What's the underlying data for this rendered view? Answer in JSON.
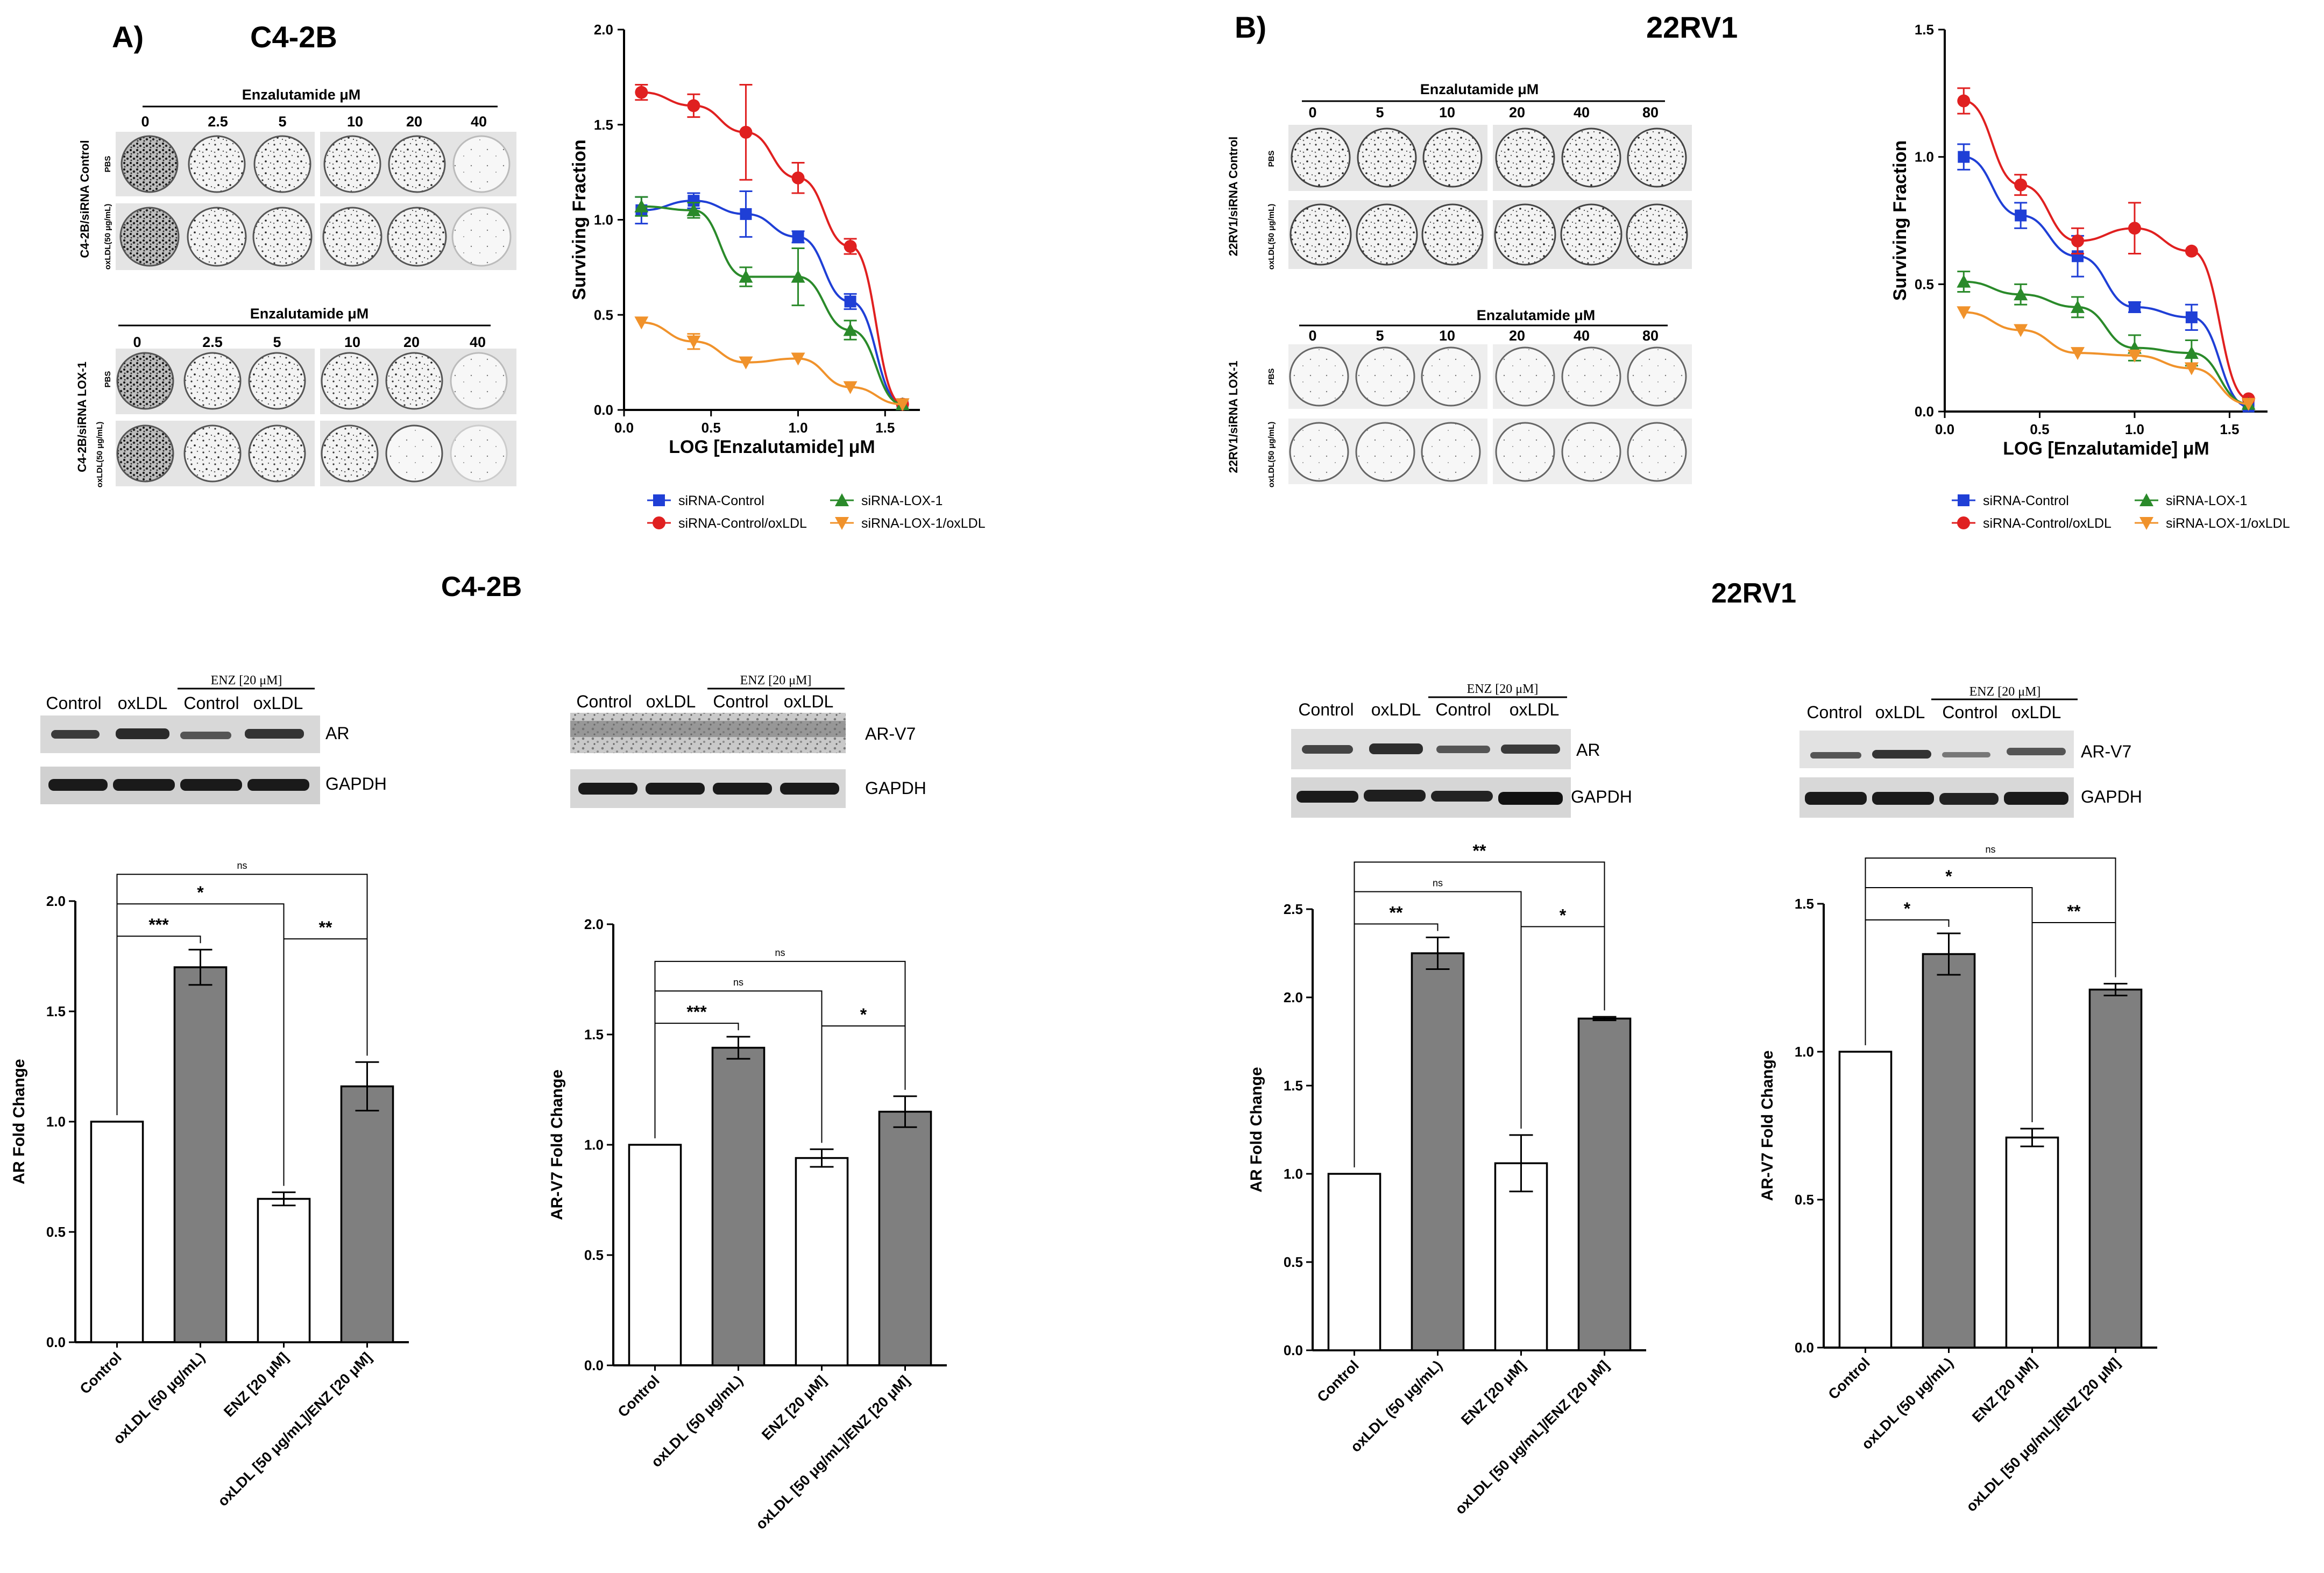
{
  "panelA": {
    "letter": "A)",
    "cell_line": "C4-2B",
    "assay_top": {
      "drug_header": "Enzalutamide μM",
      "doses": [
        "0",
        "2.5",
        "5",
        "10",
        "20",
        "40"
      ],
      "group_label": "C4-2B/siRNA Control",
      "row_labels": [
        "PBS",
        "oxLDL(50 μg/mL)"
      ]
    },
    "assay_bottom": {
      "drug_header": "Enzalutamide μM",
      "doses": [
        "0",
        "2.5",
        "5",
        "10",
        "20",
        "40"
      ],
      "group_label": "C4-2B/siRNA LOX-1",
      "row_labels": [
        "PBS",
        "oxLDL(50 μg/mL)"
      ]
    }
  },
  "panelB": {
    "letter": "B)",
    "cell_line": "22RV1",
    "assay_top": {
      "drug_header": "Enzalutamide μM",
      "doses": [
        "0",
        "5",
        "10",
        "20",
        "40",
        "80"
      ],
      "group_label": "22RV1/siRNA Control",
      "row_labels": [
        "PBS",
        "oxLDL(50 μg/mL)"
      ]
    },
    "assay_bottom": {
      "drug_header": "Enzalutamide μM",
      "doses": [
        "0",
        "5",
        "10",
        "20",
        "40",
        "80"
      ],
      "group_label": "22RV1/siRNA LOX-1",
      "row_labels": [
        "PBS",
        "oxLDL(50 μg/mL)"
      ]
    }
  },
  "westerns": {
    "c42b_title": "C4-2B",
    "rv1_title": "22RV1",
    "lane_labels": [
      "Control",
      "oxLDL",
      "Control",
      "oxLDL"
    ],
    "enz_label": "ENZ [20 μM]",
    "blots": [
      {
        "protein": "AR",
        "loading": "GAPDH"
      },
      {
        "protein": "AR-V7",
        "loading": "GAPDH"
      },
      {
        "protein": "AR",
        "loading": "GAPDH"
      },
      {
        "protein": "AR-V7",
        "loading": "GAPDH"
      }
    ]
  },
  "colors": {
    "siRNA-Control": "#1f3fd6",
    "siRNA-Control/oxLDL": "#e02020",
    "siRNA-LOX-1": "#2a8a2a",
    "siRNA-LOX-1/oxLDL": "#f0922b",
    "bar_grey": "#7f7f7f"
  },
  "chart_data": [
    {
      "type": "line",
      "title": "",
      "xlabel": "LOG [Enzalutamide] μM",
      "ylabel": "Surviving Fraction",
      "xlim": [
        0,
        1.7
      ],
      "ylim": [
        0,
        2.0
      ],
      "xticks": [
        "0.0",
        "0.5",
        "1.0",
        "1.5"
      ],
      "yticks": [
        "0.0",
        "0.5",
        "1.0",
        "1.5",
        "2.0"
      ],
      "x": [
        0.1,
        0.4,
        0.7,
        1.0,
        1.3,
        1.6
      ],
      "series": [
        {
          "name": "siRNA-Control",
          "marker": "square",
          "values": [
            1.05,
            1.1,
            1.03,
            0.91,
            0.57,
            0.03
          ],
          "errors": [
            0.07,
            0.04,
            0.12,
            0.03,
            0.04,
            0.01
          ]
        },
        {
          "name": "siRNA-Control/oxLDL",
          "marker": "circle",
          "values": [
            1.67,
            1.6,
            1.46,
            1.22,
            0.86,
            0.03
          ],
          "errors": [
            0.04,
            0.06,
            0.25,
            0.08,
            0.04,
            0.01
          ]
        },
        {
          "name": "siRNA-LOX-1",
          "marker": "triangle-up",
          "values": [
            1.07,
            1.05,
            0.7,
            0.7,
            0.42,
            0.03
          ],
          "errors": [
            0.05,
            0.04,
            0.05,
            0.15,
            0.05,
            0.01
          ]
        },
        {
          "name": "siRNA-LOX-1/oxLDL",
          "marker": "triangle-down",
          "values": [
            0.46,
            0.36,
            0.25,
            0.27,
            0.12,
            0.03
          ],
          "errors": [
            0.01,
            0.04,
            0.01,
            0.01,
            0.01,
            0.01
          ]
        }
      ],
      "legend": [
        "siRNA-Control",
        "siRNA-LOX-1",
        "siRNA-Control/oxLDL",
        "siRNA-LOX-1/oxLDL"
      ]
    },
    {
      "type": "line",
      "title": "",
      "xlabel": "LOG [Enzalutamide] μM",
      "ylabel": "Surviving Fraction",
      "xlim": [
        0,
        1.7
      ],
      "ylim": [
        0,
        1.5
      ],
      "xticks": [
        "0.0",
        "0.5",
        "1.0",
        "1.5"
      ],
      "yticks": [
        "0.0",
        "0.5",
        "1.0",
        "1.5"
      ],
      "x": [
        0.1,
        0.4,
        0.7,
        1.0,
        1.3,
        1.6
      ],
      "series": [
        {
          "name": "siRNA-Control",
          "marker": "square",
          "values": [
            1.0,
            0.77,
            0.61,
            0.41,
            0.37,
            0.02
          ],
          "errors": [
            0.05,
            0.05,
            0.08,
            0.02,
            0.05,
            0.01
          ]
        },
        {
          "name": "siRNA-Control/oxLDL",
          "marker": "circle",
          "values": [
            1.22,
            0.89,
            0.67,
            0.72,
            0.63,
            0.05
          ],
          "errors": [
            0.05,
            0.04,
            0.05,
            0.1,
            0.01,
            0.01
          ]
        },
        {
          "name": "siRNA-LOX-1",
          "marker": "triangle-up",
          "values": [
            0.51,
            0.46,
            0.41,
            0.25,
            0.23,
            0.03
          ],
          "errors": [
            0.04,
            0.04,
            0.04,
            0.05,
            0.05,
            0.01
          ]
        },
        {
          "name": "siRNA-LOX-1/oxLDL",
          "marker": "triangle-down",
          "values": [
            0.39,
            0.32,
            0.23,
            0.22,
            0.17,
            0.03
          ],
          "errors": [
            0.01,
            0.01,
            0.01,
            0.01,
            0.01,
            0.01
          ]
        }
      ],
      "legend": [
        "siRNA-Control",
        "siRNA-LOX-1",
        "siRNA-Control/oxLDL",
        "siRNA-LOX-1/oxLDL"
      ]
    },
    {
      "type": "bar",
      "ylabel": "AR Fold Change",
      "ylim": [
        0,
        2.0
      ],
      "yticks": [
        "0.0",
        "0.5",
        "1.0",
        "1.5",
        "2.0"
      ],
      "categories": [
        "Control",
        "oxLDL (50 μg/mL)",
        "ENZ [20 μM]",
        "oxLDL [50 μg/mL]/ENZ [20 μM]"
      ],
      "values": [
        1.0,
        1.7,
        0.65,
        1.16
      ],
      "errors": [
        0,
        0.08,
        0.03,
        0.11
      ],
      "fills": [
        "white",
        "grey",
        "white",
        "grey"
      ],
      "significance": [
        {
          "from": 0,
          "to": 3,
          "label": "ns",
          "level": 3
        },
        {
          "from": 0,
          "to": 2,
          "label": "*",
          "level": 2
        },
        {
          "from": 0,
          "to": 1,
          "label": "***",
          "level": 1
        },
        {
          "from": 2,
          "to": 3,
          "label": "**",
          "level": 1
        }
      ]
    },
    {
      "type": "bar",
      "ylabel": "AR-V7 Fold Change",
      "ylim": [
        0,
        2.0
      ],
      "yticks": [
        "0.0",
        "0.5",
        "1.0",
        "1.5",
        "2.0"
      ],
      "categories": [
        "Control",
        "oxLDL (50 μg/mL)",
        "ENZ [20 μM]",
        "oxLDL [50 μg/mL]/ENZ [20 μM]"
      ],
      "values": [
        1.0,
        1.44,
        0.94,
        1.15
      ],
      "errors": [
        0,
        0.05,
        0.04,
        0.07
      ],
      "fills": [
        "white",
        "grey",
        "white",
        "grey"
      ],
      "significance": [
        {
          "from": 0,
          "to": 3,
          "label": "ns",
          "level": 3
        },
        {
          "from": 0,
          "to": 2,
          "label": "ns",
          "level": 2
        },
        {
          "from": 0,
          "to": 1,
          "label": "***",
          "level": 1
        },
        {
          "from": 2,
          "to": 3,
          "label": "*",
          "level": 1
        }
      ]
    },
    {
      "type": "bar",
      "ylabel": "AR Fold Change",
      "ylim": [
        0,
        2.5
      ],
      "yticks": [
        "0.0",
        "0.5",
        "1.0",
        "1.5",
        "2.0",
        "2.5"
      ],
      "categories": [
        "Control",
        "oxLDL (50 μg/mL)",
        "ENZ [20 μM]",
        "oxLDL [50 μg/mL]/ENZ [20 μM]"
      ],
      "values": [
        1.0,
        2.25,
        1.06,
        1.88
      ],
      "errors": [
        0,
        0.09,
        0.16,
        0.01
      ],
      "fills": [
        "white",
        "grey",
        "white",
        "grey"
      ],
      "significance": [
        {
          "from": 0,
          "to": 3,
          "label": "**",
          "level": 3
        },
        {
          "from": 0,
          "to": 2,
          "label": "ns",
          "level": 2
        },
        {
          "from": 0,
          "to": 1,
          "label": "**",
          "level": 1
        },
        {
          "from": 2,
          "to": 3,
          "label": "*",
          "level": 1
        }
      ]
    },
    {
      "type": "bar",
      "ylabel": "AR-V7 Fold Change",
      "ylim": [
        0,
        1.5
      ],
      "yticks": [
        "0.0",
        "0.5",
        "1.0",
        "1.5"
      ],
      "categories": [
        "Control",
        "oxLDL (50 μg/mL)",
        "ENZ [20 μM]",
        "oxLDL [50 μg/mL]/ENZ [20 μM]"
      ],
      "values": [
        1.0,
        1.33,
        0.71,
        1.21
      ],
      "errors": [
        0,
        0.07,
        0.03,
        0.02
      ],
      "fills": [
        "white",
        "grey",
        "white",
        "grey"
      ],
      "significance": [
        {
          "from": 0,
          "to": 3,
          "label": "ns",
          "level": 3
        },
        {
          "from": 0,
          "to": 2,
          "label": "*",
          "level": 2
        },
        {
          "from": 0,
          "to": 1,
          "label": "*",
          "level": 1
        },
        {
          "from": 2,
          "to": 3,
          "label": "**",
          "level": 1
        }
      ]
    }
  ]
}
